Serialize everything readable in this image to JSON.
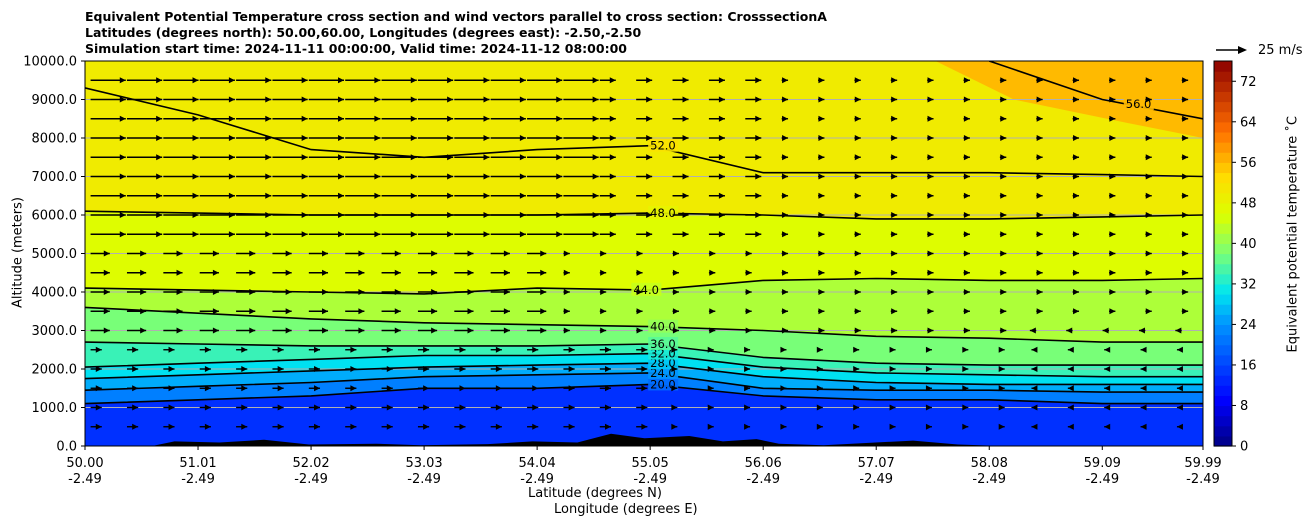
{
  "titles": {
    "line1": "Equivalent Potential Temperature cross section and wind vectors parallel to cross section: CrosssectionA",
    "line2": "Latitudes (degrees north): 50.00,60.00, Longitudes (degrees east): -2.50,-2.50",
    "line3": "Simulation start time: 2024-11-11 00:00:00, Valid time: 2024-11-12 08:00:00"
  },
  "reference_vector": {
    "label": "25 m/s",
    "speed": 25
  },
  "chart_data": {
    "type": "contourf",
    "title": "Equivalent Potential Temperature cross section and wind vectors parallel to cross section: CrosssectionA",
    "ylabel": "Altitude (meters)",
    "xlabel_lat": "Latitude (degrees N)",
    "xlabel_lon": "Longitude (degrees E)",
    "colorbar_label": "Equivalent potential temperature ˚C",
    "ylim": [
      0,
      10000
    ],
    "xlim": [
      50.0,
      59.99
    ],
    "y_ticks": [
      "0.0",
      "1000.0",
      "2000.0",
      "3000.0",
      "4000.0",
      "5000.0",
      "6000.0",
      "7000.0",
      "8000.0",
      "9000.0",
      "10000.0"
    ],
    "y_tick_values": [
      0,
      1000,
      2000,
      3000,
      4000,
      5000,
      6000,
      7000,
      8000,
      9000,
      10000
    ],
    "x_ticks_lat": [
      "50.00",
      "51.01",
      "52.02",
      "53.03",
      "54.04",
      "55.05",
      "56.06",
      "57.07",
      "58.08",
      "59.09",
      "59.99"
    ],
    "x_tick_values": [
      50.0,
      51.01,
      52.02,
      53.03,
      54.04,
      55.05,
      56.06,
      57.07,
      58.08,
      59.09,
      59.99
    ],
    "x_ticks_lon": [
      "-2.49",
      "-2.49",
      "-2.49",
      "-2.49",
      "-2.49",
      "-2.49",
      "-2.49",
      "-2.49",
      "-2.49",
      "-2.49",
      "-2.49"
    ],
    "colorbar_ticks": [
      "0",
      "8",
      "16",
      "24",
      "32",
      "40",
      "48",
      "56",
      "64",
      "72"
    ],
    "colorbar_tick_values": [
      0,
      8,
      16,
      24,
      32,
      40,
      48,
      56,
      64,
      72
    ],
    "colorbar_range": [
      0,
      76
    ],
    "grid": "horizontal",
    "contour_levels": [
      {
        "label": "20.0",
        "altitudes": [
          1100,
          1200,
          1300,
          1500,
          1500,
          1600,
          1300,
          1200,
          1200,
          1100,
          1100
        ],
        "inline_at": 55.05
      },
      {
        "label": "24.0",
        "altitudes": [
          1450,
          1550,
          1650,
          1800,
          1850,
          1900,
          1500,
          1450,
          1450,
          1400,
          1400
        ],
        "inline_at": 55.05
      },
      {
        "label": "28.0",
        "altitudes": [
          1750,
          1850,
          1950,
          2050,
          2100,
          2150,
          1800,
          1650,
          1600,
          1600,
          1600
        ],
        "inline_at": 55.05
      },
      {
        "label": "32.0",
        "altitudes": [
          2050,
          2150,
          2250,
          2350,
          2350,
          2400,
          2050,
          1900,
          1850,
          1800,
          1800
        ],
        "inline_at": 55.05
      },
      {
        "label": "36.0",
        "altitudes": [
          2700,
          2650,
          2600,
          2600,
          2600,
          2650,
          2300,
          2150,
          2100,
          2100,
          2100
        ],
        "inline_at": 55.05
      },
      {
        "label": "40.0",
        "altitudes": [
          3600,
          3450,
          3300,
          3200,
          3150,
          3100,
          3000,
          2850,
          2800,
          2700,
          2700
        ],
        "inline_at": 55.05
      },
      {
        "label": "44.0",
        "altitudes": [
          4100,
          4050,
          4000,
          3950,
          4100,
          4050,
          4300,
          4350,
          4300,
          4300,
          4350
        ],
        "inline_at": 54.9
      },
      {
        "label": "48.0",
        "altitudes": [
          6100,
          6050,
          6000,
          6000,
          6000,
          6050,
          6000,
          5900,
          5900,
          5950,
          6000
        ],
        "inline_at": 55.05
      },
      {
        "label": "52.0",
        "altitudes": [
          9300,
          8600,
          7700,
          7500,
          7700,
          7800,
          7100,
          7100,
          7100,
          7050,
          7000
        ],
        "inline_at": 55.05
      },
      {
        "label": "56.0",
        "altitudes": [
          null,
          null,
          null,
          null,
          null,
          null,
          null,
          null,
          10000,
          9000,
          8500
        ],
        "inline_at": 59.3
      }
    ],
    "wind_vectors": {
      "description": "Eastward-pointing arrows, strong aloft, weakening below 5000 m and toward the north",
      "reference_speed": 25
    },
    "terrain": "black orography along the surface, highest near 55.0 N"
  }
}
